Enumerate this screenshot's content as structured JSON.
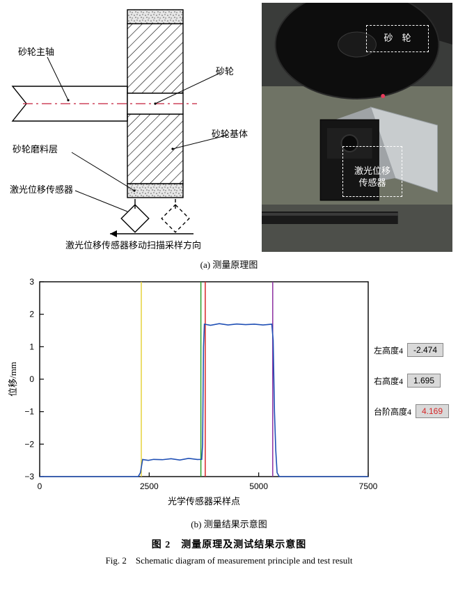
{
  "schematic": {
    "labels": {
      "spindle": "砂轮主轴",
      "wheel": "砂轮",
      "abrasive_layer": "砂轮磨料层",
      "wheel_base": "砂轮基体",
      "laser_sensor": "激光位移传感器",
      "scan_direction": "激光位移传感器移动扫描采样方向"
    },
    "colors": {
      "outline": "#000000",
      "centerline": "#c41e3a",
      "abrasive_fill": "#e6e6e6",
      "hatch": "#000000",
      "background": "#ffffff"
    }
  },
  "photo": {
    "labels": {
      "wheel": "砂　轮",
      "sensor": "激光位移\n传感器"
    },
    "colors": {
      "bg_top": "#3a3c3a",
      "bg_mid": "#7b7f6e",
      "bg_bottom": "#2b2b2b",
      "wheel_shape": "#0d0d0d",
      "sensor_body": "#1a1a1a",
      "sensor_bracket": "#c8ccce",
      "laser_dot": "#e83a5a",
      "label_text": "#ffffff",
      "label_border": "#ffffff"
    }
  },
  "sub_captions": {
    "a": "(a) 测量原理图",
    "b": "(b) 测量结果示意图"
  },
  "chart": {
    "type": "line",
    "xlabel": "光学传感器采样点",
    "ylabel": "位移/mm",
    "xlim": [
      0,
      7500
    ],
    "ylim": [
      -3,
      3
    ],
    "xticks": [
      0,
      2500,
      5000,
      7500
    ],
    "yticks": [
      -3,
      -2,
      -1,
      0,
      1,
      2,
      3
    ],
    "background_color": "#ffffff",
    "axis_color": "#000000",
    "tick_fontsize": 12,
    "label_fontsize": 13,
    "series": {
      "color": "#1f4fb5",
      "width": 1.6,
      "points": [
        [
          0,
          -3
        ],
        [
          2250,
          -3
        ],
        [
          2300,
          -2.88
        ],
        [
          2350,
          -2.474
        ],
        [
          2480,
          -2.5
        ],
        [
          2600,
          -2.47
        ],
        [
          2800,
          -2.48
        ],
        [
          3000,
          -2.45
        ],
        [
          3200,
          -2.49
        ],
        [
          3400,
          -2.44
        ],
        [
          3600,
          -2.474
        ],
        [
          3700,
          -2.47
        ],
        [
          3720,
          -2.0
        ],
        [
          3740,
          1.0
        ],
        [
          3760,
          1.695
        ],
        [
          3900,
          1.66
        ],
        [
          4100,
          1.71
        ],
        [
          4300,
          1.67
        ],
        [
          4500,
          1.7
        ],
        [
          4700,
          1.68
        ],
        [
          4900,
          1.695
        ],
        [
          5100,
          1.67
        ],
        [
          5300,
          1.695
        ],
        [
          5330,
          1.2
        ],
        [
          5360,
          -1.0
        ],
        [
          5390,
          -2.2
        ],
        [
          5420,
          -2.88
        ],
        [
          5470,
          -3
        ],
        [
          7500,
          -3
        ]
      ]
    },
    "vlines": [
      {
        "x": 2320,
        "color": "#e6d23c",
        "width": 1.5
      },
      {
        "x": 3680,
        "color": "#2aa02a",
        "width": 1.5
      },
      {
        "x": 3780,
        "color": "#d62728",
        "width": 1.5
      },
      {
        "x": 5320,
        "color": "#8c2fa0",
        "width": 1.5
      }
    ],
    "readouts": [
      {
        "label": "左高度4",
        "value": "-2.474",
        "value_color": "#000000"
      },
      {
        "label": "右高度4",
        "value": "1.695",
        "value_color": "#000000"
      },
      {
        "label": "台阶高度4",
        "value": "4.169",
        "value_color": "#d62728"
      }
    ]
  },
  "figure_caption": {
    "cn": "图 2　测量原理及测试结果示意图",
    "en": "Fig. 2 Schematic diagram of measurement principle and test result"
  }
}
